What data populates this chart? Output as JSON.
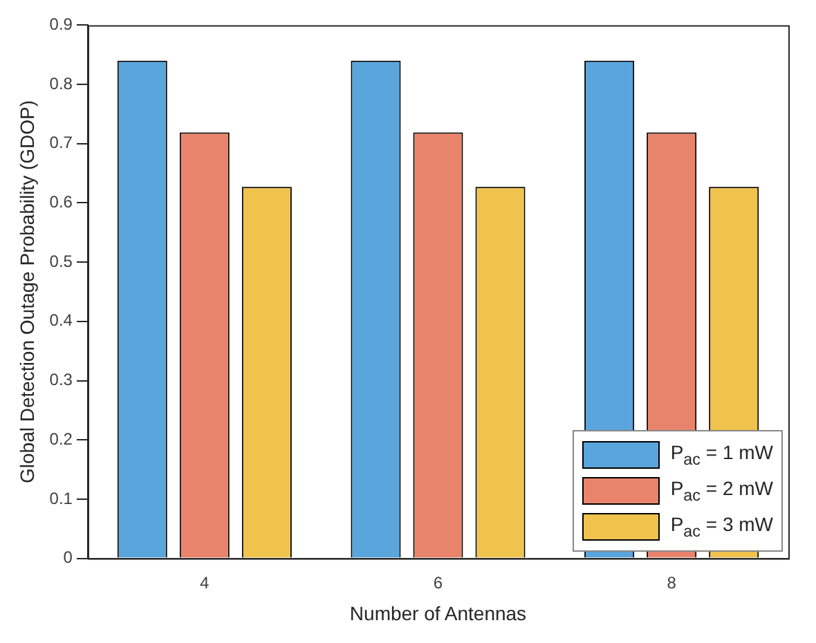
{
  "chart_data": {
    "type": "bar",
    "xlabel": "Number of Antennas",
    "ylabel": "Global Detection Outage Probability (GDOP)",
    "categories": [
      "4",
      "6",
      "8"
    ],
    "series": [
      {
        "name": "P$_{ac}$ = 1 mW",
        "color": "#5aa5dc",
        "values": [
          0.84,
          0.84,
          0.84
        ]
      },
      {
        "name": "P$_{ac}$ = 2 mW",
        "color": "#e8846c",
        "values": [
          0.719,
          0.719,
          0.719
        ]
      },
      {
        "name": "P$_{ac}$ = 3 mW",
        "color": "#f0c24e",
        "values": [
          0.627,
          0.627,
          0.627
        ]
      }
    ],
    "ylim": [
      0,
      0.9
    ],
    "yticks": [
      0,
      0.1,
      0.2,
      0.3,
      0.4,
      0.5,
      0.6,
      0.7,
      0.8,
      0.9
    ],
    "grid": false,
    "legend": "bottom right"
  }
}
